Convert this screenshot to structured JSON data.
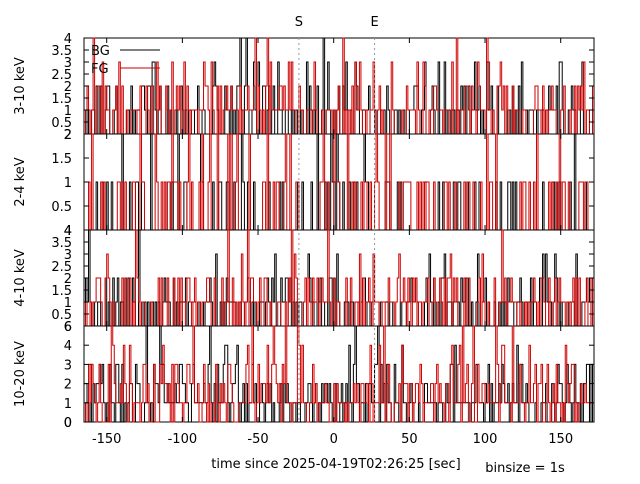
{
  "chart_data": {
    "type": "line",
    "step": true,
    "xlabel": "time since 2025-04-19T02:26:25 [sec]",
    "binsize_label": "binsize = 1s",
    "xlim": [
      -165,
      172
    ],
    "x_ticks": [
      -150,
      -100,
      -50,
      0,
      50,
      100,
      150
    ],
    "marker_lines": [
      {
        "label": "S",
        "x": -23
      },
      {
        "label": "E",
        "x": 27
      }
    ],
    "legend": {
      "placement": "top-left",
      "entries": [
        {
          "label": "BG",
          "color": "#000000"
        },
        {
          "label": "FG",
          "color": "#cc0000"
        }
      ]
    },
    "panels": [
      {
        "ylabel": "3-10 keV",
        "ylim": [
          0,
          4
        ],
        "yticks": [
          0.5,
          1,
          1.5,
          2,
          2.5,
          3,
          3.5,
          4
        ],
        "top_label": "4",
        "bottom_label": "2",
        "bg_mean": 0.9,
        "fg_mean": 1.0
      },
      {
        "ylabel": "2-4 keV",
        "ylim": [
          0,
          2
        ],
        "yticks": [
          0.5,
          1,
          1.5,
          2
        ],
        "top_label": "2",
        "bottom_label": "4",
        "bg_mean": 0.3,
        "fg_mean": 0.35
      },
      {
        "ylabel": "4-10 keV",
        "ylim": [
          0,
          4
        ],
        "yticks": [
          0.5,
          1,
          1.5,
          2,
          2.5,
          3,
          3.5,
          4
        ],
        "top_label": "4",
        "bottom_label": "6",
        "bg_mean": 0.8,
        "fg_mean": 0.95
      },
      {
        "ylabel": "10-20 keV",
        "ylim": [
          0,
          5
        ],
        "yticks": [
          0,
          1,
          2,
          3,
          4
        ],
        "top_label": "6",
        "bottom_label": "0",
        "bg_mean": 1.3,
        "fg_mean": 1.5
      }
    ],
    "colors": {
      "bg": "#000000",
      "fg": "#cc0000",
      "marker": "#999999"
    }
  }
}
